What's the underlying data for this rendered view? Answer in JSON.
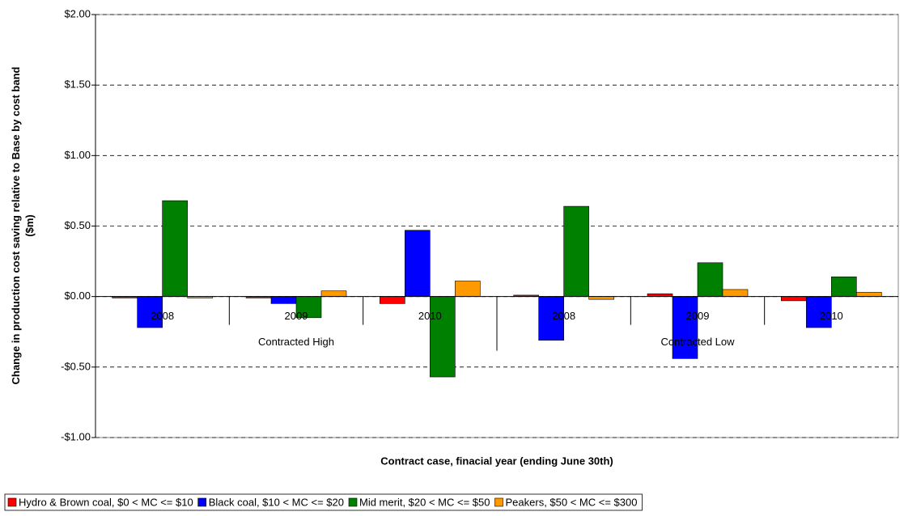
{
  "chart_data": {
    "type": "bar",
    "x_label": "Contract case, finacial year (ending June 30th)",
    "y_label": "Change in production cost saving relative to Base by cost band ($m)",
    "categories": [
      "2008",
      "2009",
      "2010",
      "2008",
      "2009",
      "2010"
    ],
    "category_groups": [
      "Contracted High",
      "Contracted Low"
    ],
    "series": [
      {
        "name": "Hydro & Brown coal, $0 < MC <= $10",
        "color": "#ff0000",
        "values": [
          -0.01,
          -0.01,
          -0.05,
          0.01,
          0.02,
          -0.03
        ]
      },
      {
        "name": "Black coal, $10 < MC <= $20",
        "color": "#0000ff",
        "values": [
          -0.22,
          -0.05,
          0.47,
          -0.31,
          -0.44,
          -0.22
        ]
      },
      {
        "name": "Mid merit, $20 < MC <= $50",
        "color": "#008000",
        "values": [
          0.68,
          -0.15,
          -0.57,
          0.64,
          0.24,
          0.14
        ]
      },
      {
        "name": "Peakers, $50 < MC <= $300",
        "color": "#ff9900",
        "values": [
          -0.01,
          0.04,
          0.11,
          -0.02,
          0.05,
          0.03
        ]
      }
    ],
    "ylim": [
      -1,
      2
    ],
    "yticks": [
      {
        "value": -1,
        "label": "-$1.00"
      },
      {
        "value": -0.5,
        "label": "-$0.50"
      },
      {
        "value": 0,
        "label": "$0.00"
      },
      {
        "value": 0.5,
        "label": "$0.50"
      },
      {
        "value": 1,
        "label": "$1.00"
      },
      {
        "value": 1.5,
        "label": "$1.50"
      },
      {
        "value": 2,
        "label": "$2.00"
      }
    ],
    "grid": true
  }
}
